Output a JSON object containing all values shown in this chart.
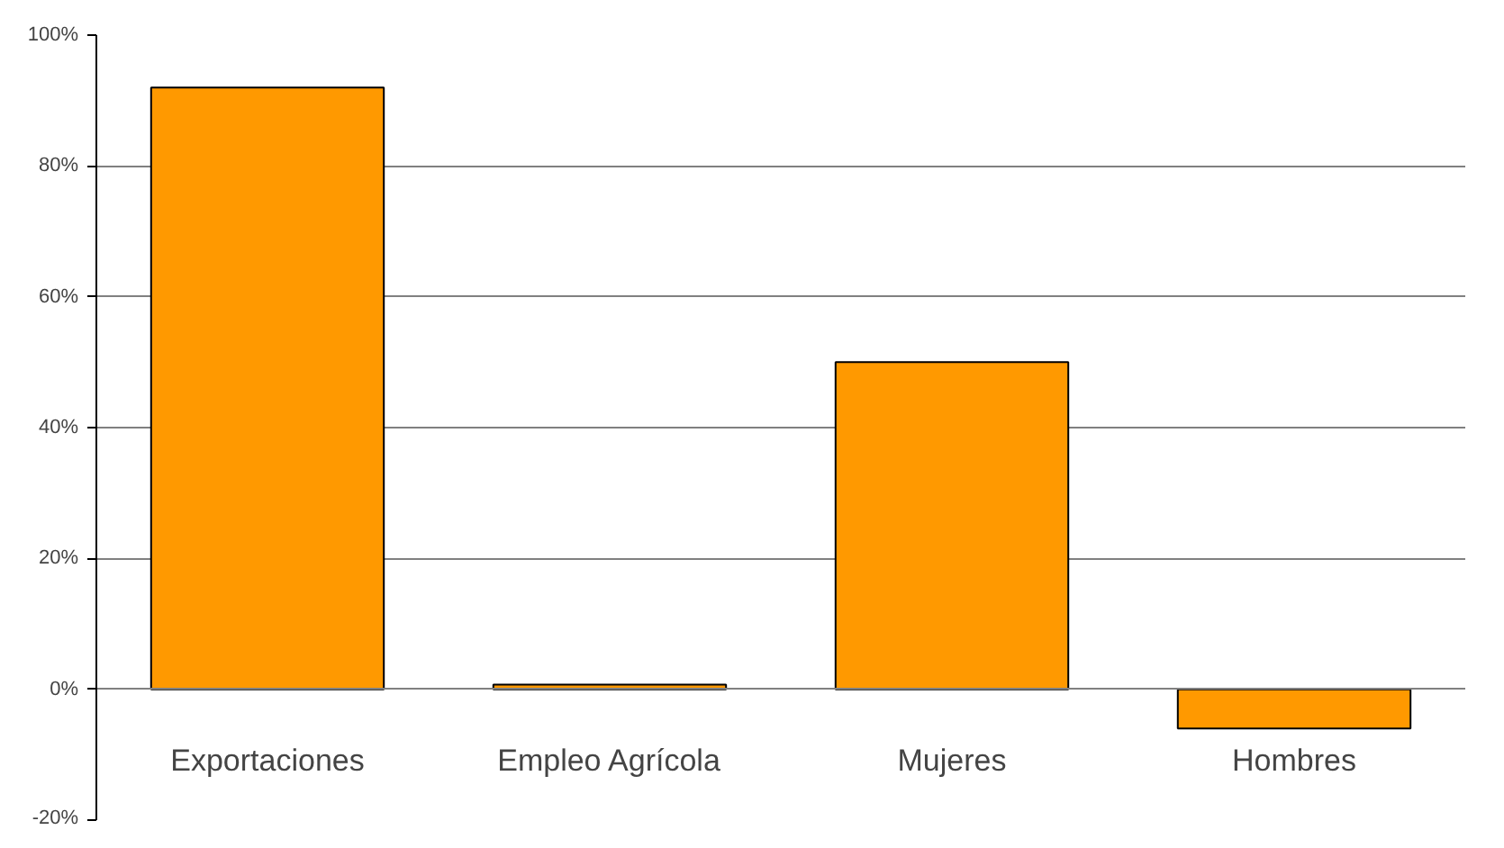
{
  "chart_data": {
    "type": "bar",
    "categories": [
      "Exportaciones",
      "Empleo Agrícola",
      "Mujeres",
      "Hombres"
    ],
    "values": [
      92,
      0.7,
      50,
      -6
    ],
    "color": "#ff9900",
    "ylim": [
      -20,
      100
    ],
    "yticks": [
      {
        "value": -20,
        "label": "-20%"
      },
      {
        "value": 0,
        "label": "0%"
      },
      {
        "value": 20,
        "label": "20%"
      },
      {
        "value": 40,
        "label": "40%"
      },
      {
        "value": 60,
        "label": "60%"
      },
      {
        "value": 80,
        "label": "80%"
      },
      {
        "value": 100,
        "label": "100%"
      }
    ],
    "grid": "y"
  }
}
